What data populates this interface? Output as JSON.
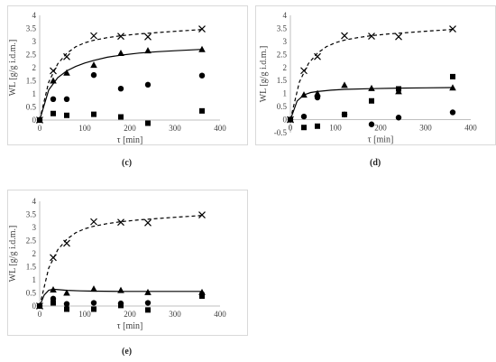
{
  "chart_data": [
    {
      "panel": "(c)",
      "type": "scatter",
      "xlabel": "τ [min]",
      "ylabel": "WL [g/g i.d.m.]",
      "xlim": [
        0,
        400
      ],
      "ylim": [
        0,
        4
      ],
      "xticks": [
        0,
        100,
        200,
        300,
        400
      ],
      "yticks": [
        0,
        0.5,
        1,
        1.5,
        2,
        2.5,
        3,
        3.5,
        4
      ],
      "series": [
        {
          "marker": "x",
          "x": [
            0,
            30,
            60,
            120,
            180,
            240,
            360
          ],
          "y": [
            0,
            1.88,
            2.42,
            3.22,
            3.2,
            3.18,
            3.48
          ]
        },
        {
          "marker": "triangle",
          "x": [
            0,
            30,
            60,
            120,
            180,
            240,
            360
          ],
          "y": [
            0,
            1.5,
            1.8,
            2.1,
            2.55,
            2.65,
            2.7
          ]
        },
        {
          "marker": "circle",
          "x": [
            0,
            30,
            60,
            120,
            180,
            240,
            360
          ],
          "y": [
            0,
            0.8,
            0.8,
            1.72,
            1.2,
            1.35,
            1.7
          ]
        },
        {
          "marker": "square",
          "x": [
            0,
            30,
            60,
            120,
            180,
            240,
            360
          ],
          "y": [
            0,
            0.25,
            0.18,
            0.22,
            0.12,
            -0.12,
            0.35
          ]
        }
      ],
      "fits": [
        {
          "style": "dashed",
          "x": [
            0,
            20,
            40,
            60,
            80,
            100,
            120,
            150,
            180,
            220,
            260,
            300,
            360
          ],
          "y": [
            0,
            1.45,
            2.15,
            2.55,
            2.8,
            2.95,
            3.05,
            3.15,
            3.22,
            3.29,
            3.34,
            3.39,
            3.46
          ]
        },
        {
          "style": "solid",
          "x": [
            0,
            20,
            40,
            60,
            80,
            100,
            120,
            150,
            180,
            220,
            260,
            300,
            360
          ],
          "y": [
            0,
            1.15,
            1.62,
            1.88,
            2.05,
            2.18,
            2.28,
            2.4,
            2.48,
            2.56,
            2.61,
            2.65,
            2.7
          ]
        }
      ]
    },
    {
      "panel": "(d)",
      "type": "scatter",
      "xlabel": "τ [min]",
      "ylabel": "WL [g/g i.d.m.]",
      "xlim": [
        0,
        400
      ],
      "ylim": [
        -0.5,
        4
      ],
      "xticks": [
        0,
        100,
        200,
        300,
        400
      ],
      "yticks": [
        -0.5,
        0,
        0.5,
        1,
        1.5,
        2,
        2.5,
        3,
        3.5,
        4
      ],
      "series": [
        {
          "marker": "x",
          "x": [
            0,
            30,
            60,
            120,
            180,
            240,
            360
          ],
          "y": [
            0,
            1.88,
            2.42,
            3.22,
            3.2,
            3.18,
            3.48
          ]
        },
        {
          "marker": "triangle",
          "x": [
            0,
            30,
            60,
            120,
            180,
            240,
            360
          ],
          "y": [
            0,
            0.95,
            1.0,
            1.32,
            1.2,
            1.08,
            1.22
          ]
        },
        {
          "marker": "circle",
          "x": [
            0,
            30,
            60,
            120,
            180,
            240,
            360
          ],
          "y": [
            0,
            0.12,
            0.85,
            0.2,
            -0.18,
            0.08,
            0.28
          ]
        },
        {
          "marker": "square",
          "x": [
            0,
            30,
            60,
            120,
            180,
            240,
            360
          ],
          "y": [
            0,
            -0.3,
            -0.25,
            0.2,
            0.72,
            1.18,
            1.65
          ]
        }
      ],
      "fits": [
        {
          "style": "dashed",
          "x": [
            0,
            20,
            40,
            60,
            80,
            100,
            120,
            150,
            180,
            220,
            260,
            300,
            360
          ],
          "y": [
            0,
            1.45,
            2.15,
            2.55,
            2.8,
            2.95,
            3.05,
            3.15,
            3.22,
            3.29,
            3.34,
            3.39,
            3.46
          ]
        },
        {
          "style": "solid",
          "x": [
            0,
            15,
            30,
            45,
            60,
            90,
            120,
            180,
            240,
            300,
            360
          ],
          "y": [
            0,
            0.72,
            0.95,
            1.04,
            1.08,
            1.13,
            1.16,
            1.19,
            1.21,
            1.22,
            1.23
          ]
        }
      ]
    },
    {
      "panel": "(e)",
      "type": "scatter",
      "xlabel": "τ [min]",
      "ylabel": "WL [g/g i.d.m.]",
      "xlim": [
        0,
        400
      ],
      "ylim": [
        0,
        4
      ],
      "xticks": [
        0,
        100,
        200,
        300,
        400
      ],
      "yticks": [
        0,
        0.5,
        1,
        1.5,
        2,
        2.5,
        3,
        3.5,
        4
      ],
      "series": [
        {
          "marker": "x",
          "x": [
            0,
            30,
            60,
            120,
            180,
            240,
            360
          ],
          "y": [
            0,
            1.85,
            2.4,
            3.22,
            3.2,
            3.18,
            3.48
          ]
        },
        {
          "marker": "triangle",
          "x": [
            0,
            30,
            60,
            120,
            180,
            240,
            360
          ],
          "y": [
            0,
            0.62,
            0.5,
            0.65,
            0.6,
            0.52,
            0.52
          ]
        },
        {
          "marker": "circle",
          "x": [
            0,
            30,
            60,
            120,
            180,
            240,
            360
          ],
          "y": [
            0,
            0.28,
            0.08,
            0.12,
            0.1,
            0.12,
            0.45
          ]
        },
        {
          "marker": "square",
          "x": [
            0,
            30,
            60,
            120,
            180,
            240,
            360
          ],
          "y": [
            0,
            0.12,
            -0.12,
            -0.12,
            0.02,
            -0.15,
            0.38
          ]
        }
      ],
      "fits": [
        {
          "style": "dashed",
          "x": [
            0,
            20,
            40,
            60,
            80,
            100,
            120,
            150,
            180,
            220,
            260,
            300,
            360
          ],
          "y": [
            0,
            1.45,
            2.15,
            2.55,
            2.8,
            2.95,
            3.05,
            3.15,
            3.22,
            3.29,
            3.34,
            3.39,
            3.46
          ]
        },
        {
          "style": "solid",
          "x": [
            0,
            10,
            20,
            30,
            45,
            60,
            90,
            120,
            180,
            240,
            300,
            360
          ],
          "y": [
            0,
            0.42,
            0.6,
            0.64,
            0.62,
            0.6,
            0.58,
            0.57,
            0.56,
            0.56,
            0.56,
            0.56
          ]
        }
      ]
    }
  ]
}
